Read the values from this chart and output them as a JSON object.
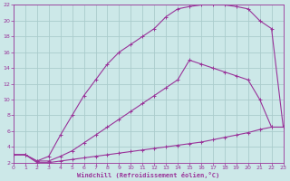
{
  "xlabel": "Windchill (Refroidissement éolien,°C)",
  "bg_color": "#cce8e8",
  "grid_color": "#aacccc",
  "line_color": "#993399",
  "xlim": [
    0,
    23
  ],
  "ylim": [
    2,
    22
  ],
  "xticks": [
    0,
    1,
    2,
    3,
    4,
    5,
    6,
    7,
    8,
    9,
    10,
    11,
    12,
    13,
    14,
    15,
    16,
    17,
    18,
    19,
    20,
    21,
    22,
    23
  ],
  "yticks": [
    2,
    4,
    6,
    8,
    10,
    12,
    14,
    16,
    18,
    20,
    22
  ],
  "curve_top_x": [
    0,
    1,
    2,
    3,
    4,
    5,
    6,
    7,
    8,
    9,
    10,
    11,
    12,
    13,
    14,
    15,
    16,
    17,
    18,
    19,
    20,
    21,
    22,
    23
  ],
  "curve_top_y": [
    3.0,
    3.0,
    2.2,
    2.8,
    5.5,
    8.0,
    10.5,
    12.5,
    14.5,
    16.0,
    17.0,
    18.0,
    19.0,
    20.5,
    21.5,
    21.8,
    22.0,
    22.0,
    22.0,
    21.8,
    21.5,
    20.0,
    19.0,
    6.5
  ],
  "curve_mid_x": [
    0,
    1,
    2,
    3,
    4,
    5,
    6,
    7,
    8,
    9,
    10,
    11,
    12,
    13,
    14,
    15,
    16,
    17,
    18,
    19,
    20,
    21,
    22,
    23
  ],
  "curve_mid_y": [
    3.0,
    3.0,
    2.2,
    2.2,
    2.8,
    3.5,
    4.5,
    5.5,
    6.5,
    7.5,
    8.5,
    9.5,
    10.5,
    11.5,
    12.5,
    15.0,
    14.5,
    14.0,
    13.5,
    13.0,
    12.5,
    10.0,
    6.5,
    6.5
  ],
  "curve_bot_x": [
    0,
    1,
    2,
    3,
    4,
    5,
    6,
    7,
    8,
    9,
    10,
    11,
    12,
    13,
    14,
    15,
    16,
    17,
    18,
    19,
    20,
    21,
    22,
    23
  ],
  "curve_bot_y": [
    3.0,
    3.0,
    2.0,
    2.0,
    2.2,
    2.4,
    2.6,
    2.8,
    3.0,
    3.2,
    3.4,
    3.6,
    3.8,
    4.0,
    4.2,
    4.4,
    4.6,
    4.9,
    5.2,
    5.5,
    5.8,
    6.2,
    6.5,
    6.5
  ]
}
